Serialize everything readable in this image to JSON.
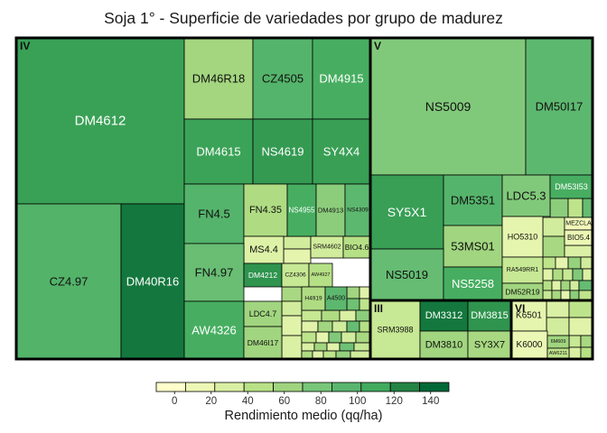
{
  "chart_data": {
    "type": "treemap",
    "title": "Soja 1° - Superficie de variedades por grupo de madurez",
    "legend": {
      "title": "Rendimiento medio (qq/ha)",
      "ticks": [
        0,
        20,
        40,
        60,
        80,
        100,
        120,
        140
      ],
      "colors": [
        "#ffffcc",
        "#eef8b6",
        "#d9f0a3",
        "#b8e186",
        "#9fd47e",
        "#78c679",
        "#5ab66e",
        "#41ab5d",
        "#238443",
        "#006837"
      ],
      "range": [
        -10,
        150
      ],
      "position": "bottom"
    },
    "groups": [
      {
        "name": "IV",
        "items": [
          {
            "label": "DM4612",
            "value": 119
          },
          {
            "label": "CZ4.97",
            "value": 102
          },
          {
            "label": "DM40R16",
            "value": 140
          },
          {
            "label": "DM46R18",
            "value": 58
          },
          {
            "label": "CZ4505",
            "value": 100
          },
          {
            "label": "DM4915",
            "value": 110
          },
          {
            "label": "DM4615",
            "value": 118
          },
          {
            "label": "NS4619",
            "value": 122
          },
          {
            "label": "SY4X4",
            "value": 120
          },
          {
            "label": "FN4.5",
            "value": 100
          },
          {
            "label": "FN4.35",
            "value": 50
          },
          {
            "label": "NS4955",
            "value": 110
          },
          {
            "label": "DM4913",
            "value": 70
          },
          {
            "label": "NS4309",
            "value": 95
          },
          {
            "label": "MS4.4",
            "value": 22
          },
          {
            "label": "SRM4602",
            "value": 30
          },
          {
            "label": "BIO4.6",
            "value": 45
          },
          {
            "label": "FN4.97",
            "value": 88
          },
          {
            "label": "DM4212",
            "value": 125
          },
          {
            "label": "CZ4306",
            "value": 35
          },
          {
            "label": "AW4927",
            "value": 45
          },
          {
            "label": "H4919",
            "value": 50
          },
          {
            "label": "A4500",
            "value": 95
          },
          {
            "label": "AW4326",
            "value": 110
          },
          {
            "label": "LDC4.7",
            "value": 60
          },
          {
            "label": "DM46I17",
            "value": 60
          }
        ]
      },
      {
        "name": "V",
        "items": [
          {
            "label": "NS5009",
            "value": 75
          },
          {
            "label": "DM50I17",
            "value": 95
          },
          {
            "label": "SY5X1",
            "value": 120
          },
          {
            "label": "DM5351",
            "value": 100
          },
          {
            "label": "LDC5.3",
            "value": 75
          },
          {
            "label": "DM53I53",
            "value": 110
          },
          {
            "label": "53MS01",
            "value": 60
          },
          {
            "label": "HO5310",
            "value": 15
          },
          {
            "label": "MEZCLA",
            "value": 5
          },
          {
            "label": "BIO5.4",
            "value": 10
          },
          {
            "label": "NS5019",
            "value": 90
          },
          {
            "label": "NS5258",
            "value": 110
          },
          {
            "label": "RA549RR1",
            "value": 35
          },
          {
            "label": "DM52R19",
            "value": 60
          }
        ]
      },
      {
        "name": "III",
        "items": [
          {
            "label": "SRM3988",
            "value": 35
          },
          {
            "label": "DM3312",
            "value": 140
          },
          {
            "label": "DM3815",
            "value": 125
          },
          {
            "label": "DM3810",
            "value": 60
          },
          {
            "label": "SY3X7",
            "value": 55
          }
        ]
      },
      {
        "name": "VI",
        "items": [
          {
            "label": "K6501",
            "value": 15
          },
          {
            "label": "K6000",
            "value": 10
          },
          {
            "label": "6M609",
            "value": 60
          },
          {
            "label": "AW6211",
            "value": 40
          }
        ]
      }
    ]
  }
}
